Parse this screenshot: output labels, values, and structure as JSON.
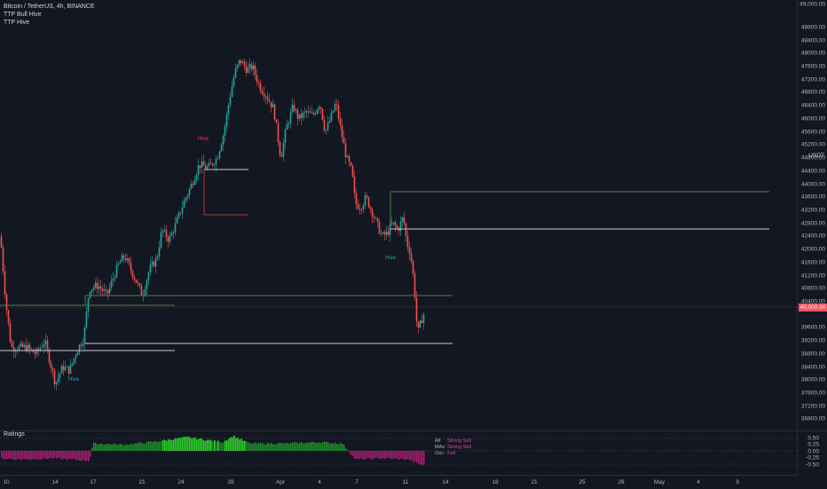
{
  "legend": {
    "symbol_line": "Bitcoin / TetherUS, 4h, BINANCE",
    "indicator_1": "TTP Bull Hive",
    "indicator_2": "TTP Hive"
  },
  "price_axis": {
    "currency": "USDT",
    "current_price_label": "40,000.00",
    "top_label": "49,000.00",
    "labels": [
      "48800.00",
      "48400.00",
      "48000.00",
      "47600.00",
      "47200.00",
      "46800.00",
      "46400.00",
      "46000.00",
      "45600.00",
      "45200.00",
      "44800.00",
      "44400.00",
      "44000.00",
      "43600.00",
      "43200.00",
      "42800.00",
      "42400.00",
      "42000.00",
      "41600.00",
      "41200.00",
      "40800.00",
      "40400.00",
      "39600.00",
      "39200.00",
      "38800.00",
      "38400.00",
      "38000.00",
      "37600.00",
      "37200.00",
      "36800.00"
    ]
  },
  "hive_markers": {
    "upper": "Hive",
    "middle": "Hive",
    "lower": "Hive"
  },
  "ratings": {
    "title": "Ratings",
    "axis_labels": [
      "0.50",
      "0.25",
      "0.00",
      "-0.25",
      "-0.50"
    ],
    "summary": [
      {
        "key": "All:",
        "value": "Strong Sell"
      },
      {
        "key": "MAs:",
        "value": "Strong Sell"
      },
      {
        "key": "Osc:",
        "value": "Sell"
      }
    ]
  },
  "time_axis": {
    "labels": [
      "10",
      "14",
      "17",
      "21",
      "24",
      "28",
      "Apr",
      "4",
      "7",
      "11",
      "14",
      "18",
      "21",
      "25",
      "28",
      "May",
      "4",
      "9"
    ]
  },
  "colors": {
    "background": "#131722",
    "up": "#26a69a",
    "down": "#ef5350",
    "line_green": "#4c7f4a",
    "line_gray": "#c9cbd1",
    "line_red": "#b23a3a",
    "rating_pos": "#2ab32a",
    "rating_neg": "#9c1e6b"
  }
}
